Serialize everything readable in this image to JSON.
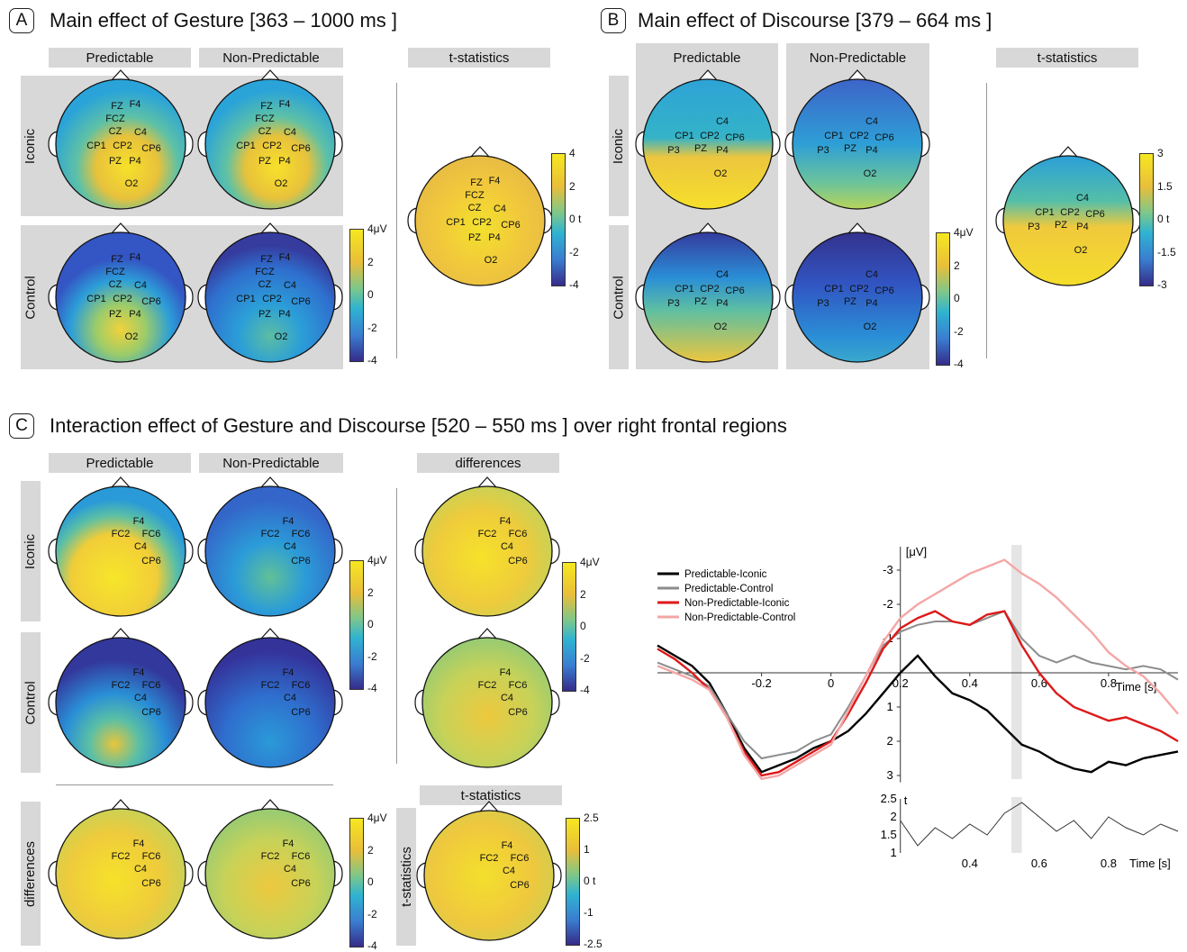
{
  "panels": {
    "A": {
      "letter": "A",
      "title": "Main effect of Gesture [363 – 1000 ms ]",
      "col_headers": [
        "Predictable",
        "Non-Predictable"
      ],
      "row_headers": [
        "Iconic",
        "Control"
      ],
      "stat_header": "t-statistics",
      "electrodes": [
        "FZ",
        "F4",
        "FCZ",
        "CZ",
        "C4",
        "CP1",
        "CP2",
        "CP6",
        "PZ",
        "P4",
        "O2"
      ],
      "colorbar_uv": {
        "unit": "4μV",
        "ticks": [
          "2",
          "0",
          "-2",
          "-4"
        ]
      },
      "colorbar_t": {
        "ticks": [
          "4",
          "2",
          "0 t",
          "-2",
          "-4"
        ]
      }
    },
    "B": {
      "letter": "B",
      "title": "Main effect of Discourse [379 – 664 ms ]",
      "col_headers": [
        "Predictable",
        "Non-Predictable"
      ],
      "row_headers": [
        "Iconic",
        "Control"
      ],
      "stat_header": "t-statistics",
      "electrodes": [
        "C4",
        "CP1",
        "CP2",
        "CP6",
        "P3",
        "PZ",
        "P4",
        "O2"
      ],
      "colorbar_uv": {
        "unit": "4μV",
        "ticks": [
          "2",
          "0",
          "-2",
          "-4"
        ]
      },
      "colorbar_t": {
        "ticks": [
          "3",
          "1.5",
          "0 t",
          "-1.5",
          "-3"
        ]
      }
    },
    "C": {
      "letter": "C",
      "title": "Interaction effect of Gesture and Discourse [520 – 550 ms ] over right frontal regions",
      "col_headers": [
        "Predictable",
        "Non-Predictable"
      ],
      "diff_header": "differences",
      "row_headers": [
        "Iconic",
        "Control",
        "differences"
      ],
      "stat_header": "t-statistics",
      "stat_row_header": "t-statistics",
      "electrodes": [
        "F4",
        "FC2",
        "FC6",
        "C4",
        "CP6"
      ],
      "colorbar_uv": {
        "unit": "4μV",
        "ticks": [
          "2",
          "0",
          "-2",
          "-4"
        ]
      },
      "colorbar_t": {
        "ticks": [
          "2.5",
          "1",
          "0 t",
          "-1",
          "-2.5"
        ]
      }
    }
  },
  "chart_data": [
    {
      "type": "line",
      "xlabel": "Time [s]",
      "ylabel": "[μV]",
      "y_inverted": true,
      "xlim": [
        -0.5,
        1.0
      ],
      "ylim": [
        3.3,
        -3.3
      ],
      "x_ticks": [
        "-0.2",
        "0",
        "0.2",
        "0.4",
        "0.6",
        "0.8"
      ],
      "y_ticks": [
        "-3",
        "-2",
        "-1",
        "1",
        "2",
        "3"
      ],
      "highlight_window": [
        0.52,
        0.55
      ],
      "legend": "top-left",
      "x": [
        -0.5,
        -0.45,
        -0.4,
        -0.35,
        -0.3,
        -0.25,
        -0.2,
        -0.15,
        -0.1,
        -0.05,
        0.0,
        0.05,
        0.1,
        0.15,
        0.2,
        0.25,
        0.3,
        0.35,
        0.4,
        0.45,
        0.5,
        0.55,
        0.6,
        0.65,
        0.7,
        0.75,
        0.8,
        0.85,
        0.9,
        0.95,
        1.0
      ],
      "series": [
        {
          "name": "Predictable-Iconic",
          "color": "#000000",
          "values": [
            -0.8,
            -0.5,
            -0.2,
            0.3,
            1.2,
            2.2,
            2.9,
            2.7,
            2.5,
            2.2,
            2.0,
            1.7,
            1.2,
            0.6,
            0.0,
            -0.5,
            0.1,
            0.6,
            0.8,
            1.1,
            1.6,
            2.1,
            2.3,
            2.6,
            2.8,
            2.9,
            2.6,
            2.7,
            2.5,
            2.4,
            2.3
          ]
        },
        {
          "name": "Predictable-Control",
          "color": "#8c8c8c",
          "values": [
            -0.3,
            -0.1,
            0.1,
            0.4,
            1.2,
            2.0,
            2.5,
            2.4,
            2.3,
            2.0,
            1.8,
            1.0,
            0.1,
            -0.8,
            -1.2,
            -1.4,
            -1.5,
            -1.5,
            -1.4,
            -1.6,
            -1.8,
            -1.0,
            -0.5,
            -0.3,
            -0.5,
            -0.3,
            -0.2,
            -0.1,
            -0.2,
            -0.1,
            0.2
          ]
        },
        {
          "name": "Non-Predictable-Iconic",
          "color": "#dd1a1a",
          "values": [
            -0.7,
            -0.4,
            0.0,
            0.5,
            1.3,
            2.3,
            3.0,
            2.9,
            2.6,
            2.3,
            2.0,
            1.2,
            0.3,
            -0.7,
            -1.3,
            -1.6,
            -1.8,
            -1.5,
            -1.4,
            -1.7,
            -1.8,
            -0.8,
            0.0,
            0.6,
            1.0,
            1.2,
            1.4,
            1.3,
            1.5,
            1.7,
            2.0
          ]
        },
        {
          "name": "Non-Predictable-Control",
          "color": "#f4a6a6",
          "values": [
            -0.2,
            0.0,
            0.2,
            0.5,
            1.3,
            2.4,
            3.1,
            3.0,
            2.7,
            2.4,
            2.1,
            1.1,
            0.1,
            -0.9,
            -1.6,
            -2.0,
            -2.3,
            -2.6,
            -2.9,
            -3.1,
            -3.3,
            -2.9,
            -2.6,
            -2.2,
            -1.7,
            -1.2,
            -0.6,
            -0.2,
            0.1,
            0.6,
            1.2
          ]
        }
      ]
    },
    {
      "type": "line",
      "xlabel": "Time [s]",
      "ylabel": "t",
      "xlim": [
        0.2,
        1.0
      ],
      "ylim": [
        1,
        2.5
      ],
      "x_ticks": [
        "0.4",
        "0.6",
        "0.8"
      ],
      "y_ticks": [
        "1",
        "1.5",
        "2",
        "2.5"
      ],
      "highlight_window": [
        0.52,
        0.55
      ],
      "series": [
        {
          "color": "#333333",
          "x": [
            0.2,
            0.25,
            0.3,
            0.35,
            0.4,
            0.45,
            0.5,
            0.55,
            0.6,
            0.65,
            0.7,
            0.75,
            0.8,
            0.85,
            0.9,
            0.95,
            1.0
          ],
          "values": [
            1.9,
            1.2,
            1.7,
            1.4,
            1.8,
            1.5,
            2.1,
            2.4,
            2.0,
            1.6,
            1.9,
            1.4,
            2.0,
            1.7,
            1.5,
            1.8,
            1.6
          ]
        }
      ]
    }
  ]
}
